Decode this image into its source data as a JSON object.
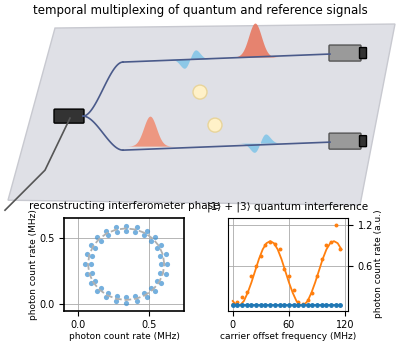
{
  "diagram": {
    "title": "temporal multiplexing of quantum and reference signals"
  },
  "chart_data": [
    {
      "type": "scatter",
      "title": "reconstructing interferometer phase",
      "xlabel": "photon count rate (MHz)",
      "ylabel": "photon count rate (MHz)",
      "xlim": [
        -0.1,
        0.75
      ],
      "ylim": [
        -0.05,
        0.65
      ],
      "xticks": [
        0.0,
        0.5
      ],
      "yticks": [
        0.0,
        0.5
      ],
      "grid": true,
      "series": [
        {
          "type": "scatter",
          "color": "#3a8fd0",
          "marker": "o",
          "x": [
            0.63,
            0.62,
            0.59,
            0.545,
            0.485,
            0.415,
            0.34,
            0.265,
            0.195,
            0.135,
            0.089,
            0.06,
            0.05,
            0.06,
            0.089,
            0.135,
            0.195,
            0.265,
            0.34,
            0.415,
            0.485,
            0.545,
            0.59,
            0.62,
            0.59,
            0.582,
            0.557,
            0.517,
            0.465,
            0.405,
            0.34,
            0.275,
            0.215,
            0.163,
            0.123,
            0.098,
            0.09,
            0.098,
            0.123,
            0.163,
            0.215,
            0.275,
            0.34,
            0.405,
            0.465,
            0.517,
            0.557,
            0.582
          ],
          "values": [
            0.3,
            0.375,
            0.445,
            0.505,
            0.551,
            0.58,
            0.59,
            0.58,
            0.551,
            0.505,
            0.445,
            0.375,
            0.3,
            0.225,
            0.155,
            0.095,
            0.049,
            0.02,
            0.01,
            0.02,
            0.049,
            0.095,
            0.155,
            0.225,
            0.3,
            0.365,
            0.425,
            0.477,
            0.517,
            0.542,
            0.55,
            0.542,
            0.517,
            0.477,
            0.425,
            0.365,
            0.3,
            0.235,
            0.175,
            0.123,
            0.083,
            0.058,
            0.05,
            0.058,
            0.083,
            0.123,
            0.175,
            0.235
          ]
        },
        {
          "type": "line",
          "color": "#b0b0b0",
          "line_style": "dashed",
          "x": [
            0.61,
            0.601,
            0.574,
            0.531,
            0.475,
            0.41,
            0.34,
            0.27,
            0.205,
            0.149,
            0.106,
            0.079,
            0.07,
            0.079,
            0.106,
            0.149,
            0.205,
            0.27,
            0.34,
            0.41,
            0.475,
            0.531,
            0.574,
            0.601,
            0.61
          ],
          "values": [
            0.3,
            0.37,
            0.435,
            0.491,
            0.534,
            0.561,
            0.57,
            0.561,
            0.534,
            0.491,
            0.435,
            0.37,
            0.3,
            0.23,
            0.165,
            0.109,
            0.066,
            0.039,
            0.03,
            0.039,
            0.066,
            0.109,
            0.165,
            0.23,
            0.3
          ]
        }
      ]
    },
    {
      "type": "scatter",
      "title": "|1⟩ + |3⟩ quantum interference",
      "xlabel": "carrier offset frequency (MHz)",
      "ylabel": "photon count rate (a.u.)",
      "xlim": [
        -5,
        123
      ],
      "ylim": [
        -0.05,
        1.3
      ],
      "xticks": [
        0,
        60,
        120
      ],
      "yticks": [
        0.6,
        1.2
      ],
      "grid": true,
      "series": [
        {
          "type": "scatter",
          "color": "#ff7f0e",
          "marker": "o",
          "x": [
            0,
            5,
            10,
            15,
            20,
            25,
            30,
            35,
            40,
            45,
            50,
            55,
            60,
            65,
            70,
            75,
            80,
            85,
            90,
            95,
            100,
            105,
            110,
            115
          ],
          "values": [
            0.05,
            0.08,
            0.15,
            0.22,
            0.45,
            0.6,
            0.75,
            0.9,
            0.95,
            0.92,
            0.85,
            0.55,
            0.45,
            0.25,
            0.08,
            0.05,
            0.1,
            0.2,
            0.45,
            0.7,
            0.9,
            0.95,
            1.2,
            0.85
          ]
        },
        {
          "type": "line",
          "color": "#ff7f0e",
          "line_style": "solid",
          "x": [
            0,
            4,
            8,
            12,
            16,
            20,
            24,
            28,
            32,
            36,
            40,
            44,
            48,
            52,
            56,
            60,
            64,
            68,
            72,
            76,
            80,
            84,
            88,
            92,
            96,
            100,
            104,
            108,
            112,
            116
          ],
          "values": [
            0.09,
            0.03,
            0.03,
            0.09,
            0.21,
            0.36,
            0.53,
            0.7,
            0.84,
            0.93,
            0.96,
            0.93,
            0.84,
            0.7,
            0.53,
            0.36,
            0.21,
            0.09,
            0.03,
            0.03,
            0.09,
            0.21,
            0.36,
            0.53,
            0.7,
            0.84,
            0.93,
            0.96,
            0.93,
            0.84
          ]
        },
        {
          "type": "line",
          "color": "#1f77b4",
          "marker": "o",
          "line_style": "solid",
          "x": [
            0,
            5,
            10,
            15,
            20,
            25,
            30,
            35,
            40,
            45,
            50,
            55,
            60,
            65,
            70,
            75,
            80,
            85,
            90,
            95,
            100,
            105,
            110,
            115
          ],
          "values": [
            0.03,
            0.03,
            0.03,
            0.03,
            0.03,
            0.03,
            0.03,
            0.03,
            0.03,
            0.03,
            0.03,
            0.03,
            0.03,
            0.03,
            0.03,
            0.03,
            0.03,
            0.03,
            0.03,
            0.03,
            0.03,
            0.03,
            0.03,
            0.03
          ]
        }
      ]
    }
  ]
}
